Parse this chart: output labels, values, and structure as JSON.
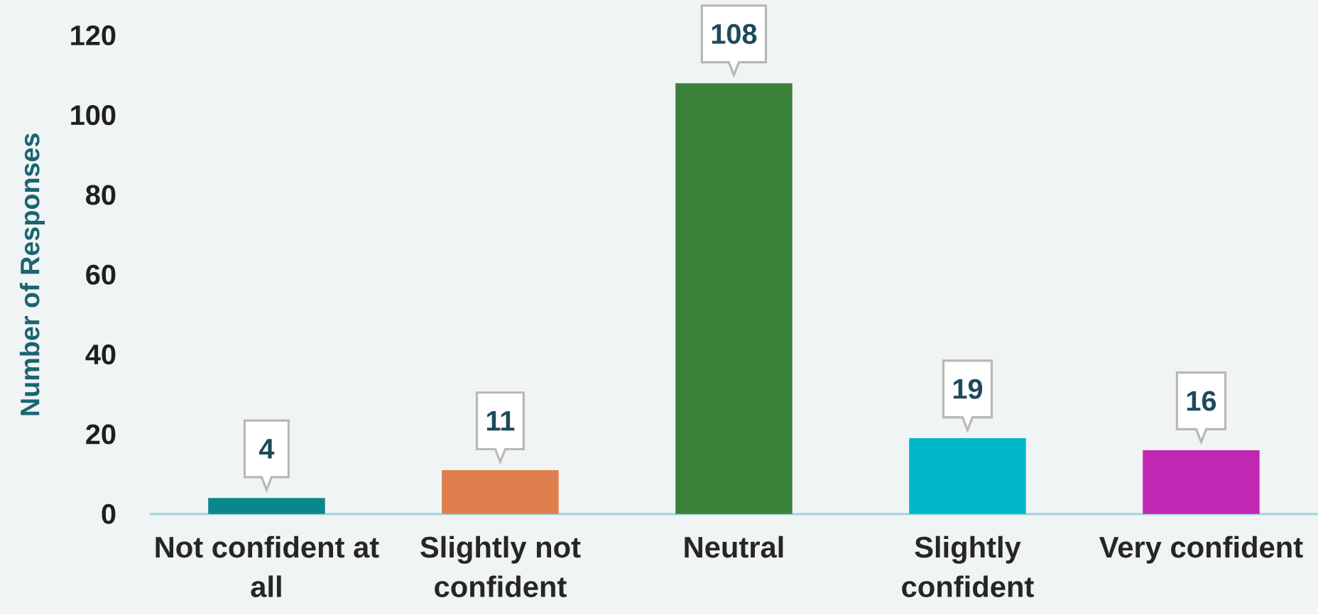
{
  "chart_data": {
    "type": "bar",
    "categories": [
      "Not confident at all",
      "Slightly not confident",
      "Neutral",
      "Slightly confident",
      "Very confident"
    ],
    "values": [
      4,
      11,
      108,
      19,
      16
    ],
    "colors": [
      "#0a878c",
      "#e07f4e",
      "#3a8038",
      "#00b7ca",
      "#c227b3"
    ],
    "ylabel": "Number of Responses",
    "ylim": [
      0,
      120
    ],
    "yticks": [
      0,
      20,
      40,
      60,
      80,
      100,
      120
    ],
    "data_labels": true
  }
}
